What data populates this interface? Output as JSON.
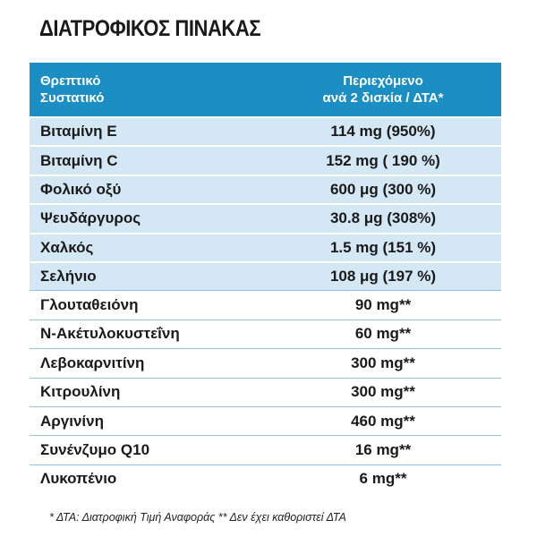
{
  "header": {
    "title": "ΔΙΑΤΡΟΦΙΚΟΣ ΠΙΝΑΚΑΣ"
  },
  "table": {
    "columns": [
      "Θρεπτικό\nΣυστατικό",
      "Περιεχόμενο\nανά 2 δισκία / ΔΤΑ*"
    ],
    "rows": [
      [
        "Βιταμίνη Ε",
        "114 mg (950%)"
      ],
      [
        "Βιταμίνη C",
        "152 mg ( 190 %)"
      ],
      [
        "Φολικό οξύ",
        "600 μg (300 %)"
      ],
      [
        "Ψευδάργυρος",
        "30.8 μg (308%)"
      ],
      [
        "Χαλκός",
        "1.5 mg (151 %)"
      ],
      [
        "Σελήνιο",
        "108 μg (197 %)"
      ],
      [
        "Γλουταθειόνη",
        "90 mg**"
      ],
      [
        "Ν-Ακέτυλοκυστεΐνη",
        "60 mg**"
      ],
      [
        "Λεβοκαρνιτίνη",
        "300 mg**"
      ],
      [
        "Κιτρουλίνη",
        "300 mg**"
      ],
      [
        "Αργινίνη",
        "460 mg**"
      ],
      [
        "Συνένζυμο Q10",
        "16 mg**"
      ],
      [
        "Λυκοπένιο",
        "6 mg**"
      ]
    ]
  },
  "footnote": "* ΔΤΑ: Διατροφική Τιμή Αναφοράς  ** Δεν έχει καθοριστεί ΔΤΑ"
}
